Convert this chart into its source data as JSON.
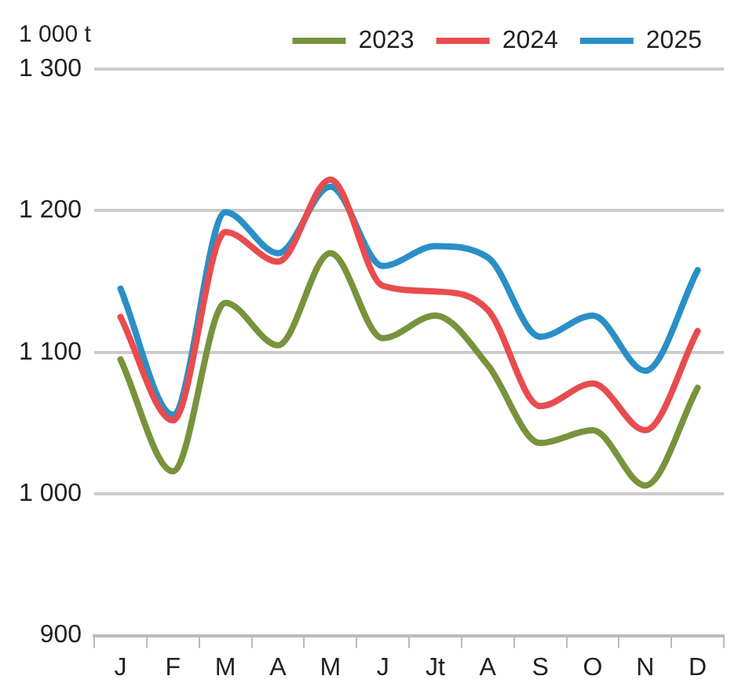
{
  "chart_data": {
    "type": "line",
    "ylabel": "1 000 t",
    "categories": [
      "J",
      "F",
      "M",
      "A",
      "M",
      "J",
      "Jt",
      "A",
      "S",
      "O",
      "N",
      "D"
    ],
    "series": [
      {
        "name": "2023",
        "color": "#77933c",
        "values": [
          1095,
          1016,
          1135,
          1105,
          1170,
          1110,
          1126,
          1091,
          1036,
          1045,
          1006,
          1075
        ]
      },
      {
        "name": "2024",
        "color": "#e84c4f",
        "values": [
          1125,
          1052,
          1185,
          1164,
          1222,
          1147,
          1143,
          1130,
          1062,
          1078,
          1045,
          1115
        ]
      },
      {
        "name": "2025",
        "color": "#2a8fc6",
        "values": [
          1145,
          1056,
          1199,
          1170,
          1217,
          1161,
          1175,
          1167,
          1111,
          1126,
          1087,
          1158
        ]
      }
    ],
    "ylim": [
      900,
      1300
    ],
    "yticks": [
      {
        "value": 900,
        "label": "900"
      },
      {
        "value": 1000,
        "label": "1 000"
      },
      {
        "value": 1100,
        "label": "1 100"
      },
      {
        "value": 1200,
        "label": "1 200"
      },
      {
        "value": 1300,
        "label": "1 300"
      }
    ],
    "grid": "y",
    "legend": "top right",
    "marker": "none",
    "line_style": "solid"
  }
}
